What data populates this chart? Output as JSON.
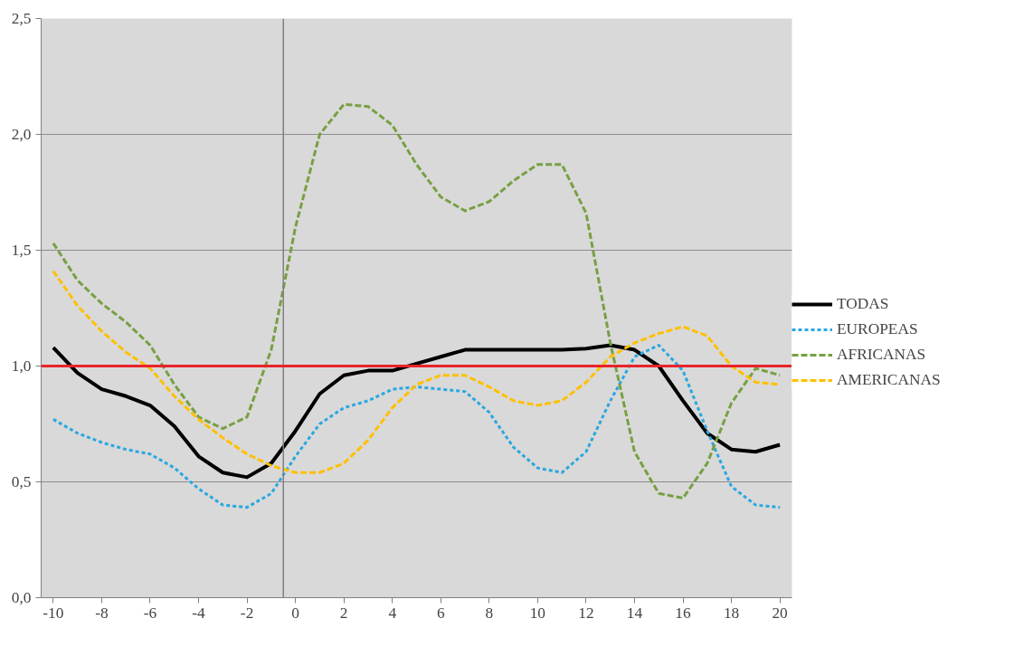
{
  "chart_data": {
    "type": "line",
    "x": [
      -10,
      -9,
      -8,
      -7,
      -6,
      -5,
      -4,
      -3,
      -2,
      -1,
      0,
      1,
      2,
      3,
      4,
      5,
      6,
      7,
      8,
      9,
      10,
      11,
      12,
      13,
      14,
      15,
      16,
      17,
      18,
      19,
      20
    ],
    "xlim": [
      -10.5,
      20.5
    ],
    "xticks": [
      -10,
      -8,
      -6,
      -4,
      -2,
      0,
      2,
      4,
      6,
      8,
      10,
      12,
      14,
      16,
      18,
      20
    ],
    "ylim": [
      0,
      2.5
    ],
    "yticks": [
      {
        "value": 0,
        "label": "0,0"
      },
      {
        "value": 0.5,
        "label": "0,5"
      },
      {
        "value": 1,
        "label": "1,0"
      },
      {
        "value": 1.5,
        "label": "1,5"
      },
      {
        "value": 2,
        "label": "2,0"
      },
      {
        "value": 2.5,
        "label": "2,5"
      }
    ],
    "grid": "y",
    "legend": "right",
    "marker": "none",
    "series": [
      {
        "name": "TODAS",
        "color": "#000000",
        "line_style": "solid",
        "values": [
          1.08,
          0.97,
          0.9,
          0.87,
          0.83,
          0.74,
          0.61,
          0.54,
          0.52,
          0.58,
          0.72,
          0.88,
          0.96,
          0.98,
          0.98,
          1.01,
          1.04,
          1.07,
          1.07,
          1.07,
          1.07,
          1.07,
          1.075,
          1.09,
          1.07,
          1.0,
          0.85,
          0.71,
          0.64,
          0.63,
          0.66
        ]
      },
      {
        "name": "EUROPEAS",
        "color": "#29a8e0",
        "line_style": "dotted",
        "values": [
          0.77,
          0.71,
          0.67,
          0.64,
          0.62,
          0.56,
          0.47,
          0.4,
          0.39,
          0.45,
          0.61,
          0.75,
          0.82,
          0.85,
          0.9,
          0.91,
          0.9,
          0.89,
          0.8,
          0.65,
          0.56,
          0.54,
          0.63,
          0.85,
          1.04,
          1.09,
          0.98,
          0.72,
          0.48,
          0.4,
          0.39
        ]
      },
      {
        "name": "AFRICANAS",
        "color": "#77a043",
        "line_style": "dashed",
        "values": [
          1.53,
          1.37,
          1.27,
          1.19,
          1.09,
          0.92,
          0.78,
          0.73,
          0.78,
          1.07,
          1.6,
          2.0,
          2.13,
          2.12,
          2.04,
          1.87,
          1.73,
          1.67,
          1.71,
          1.8,
          1.87,
          1.87,
          1.66,
          1.1,
          0.63,
          0.45,
          0.43,
          0.58,
          0.84,
          0.99,
          0.96
        ]
      },
      {
        "name": "AMERICANAS",
        "color": "#ffc000",
        "line_style": "dashed",
        "values": [
          1.41,
          1.26,
          1.15,
          1.06,
          0.99,
          0.87,
          0.77,
          0.69,
          0.62,
          0.57,
          0.54,
          0.54,
          0.58,
          0.68,
          0.82,
          0.92,
          0.96,
          0.96,
          0.91,
          0.85,
          0.83,
          0.85,
          0.93,
          1.04,
          1.1,
          1.14,
          1.17,
          1.13,
          1.0,
          0.93,
          0.92
        ]
      }
    ],
    "ref_lines": [
      {
        "axis": "x",
        "value": -0.5,
        "color": "#808080"
      },
      {
        "axis": "y",
        "value": 1.0,
        "color": "#e8232a"
      }
    ]
  }
}
